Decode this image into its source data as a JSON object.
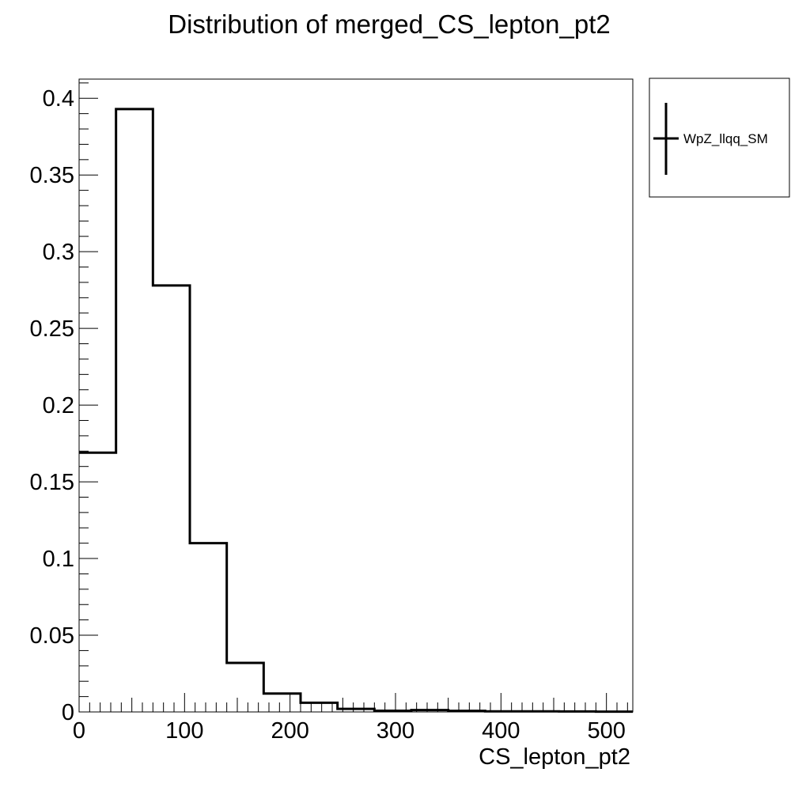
{
  "chart_data": {
    "type": "bar",
    "title": "Distribution of merged_CS_lepton_pt2",
    "xlabel": "CS_lepton_pt2",
    "ylabel": "",
    "bin_edges": [
      0,
      35,
      70,
      105,
      140,
      175,
      210,
      245,
      280,
      315,
      350,
      385,
      420,
      455,
      490,
      525
    ],
    "series": [
      {
        "name": "WpZ_llqq_SM",
        "values": [
          0.169,
          0.393,
          0.278,
          0.11,
          0.032,
          0.012,
          0.006,
          0.002,
          0.0008,
          0.0012,
          0.0007,
          0.0004,
          0.0004,
          0.0003,
          0.0002
        ],
        "color": "#000000"
      }
    ],
    "xlim": [
      0,
      525
    ],
    "ylim": [
      0,
      0.4125
    ],
    "x_ticks": [
      0,
      100,
      200,
      300,
      400,
      500
    ],
    "x_tick_labels": [
      "0",
      "100",
      "200",
      "300",
      "400",
      "500"
    ],
    "y_ticks": [
      0,
      0.05,
      0.1,
      0.15,
      0.2,
      0.25,
      0.3,
      0.35,
      0.4
    ],
    "y_tick_labels": [
      "0",
      "0.05",
      "0.1",
      "0.15",
      "0.2",
      "0.25",
      "0.3",
      "0.35",
      "0.4"
    ],
    "grid": false,
    "legend_position": "right-top"
  }
}
